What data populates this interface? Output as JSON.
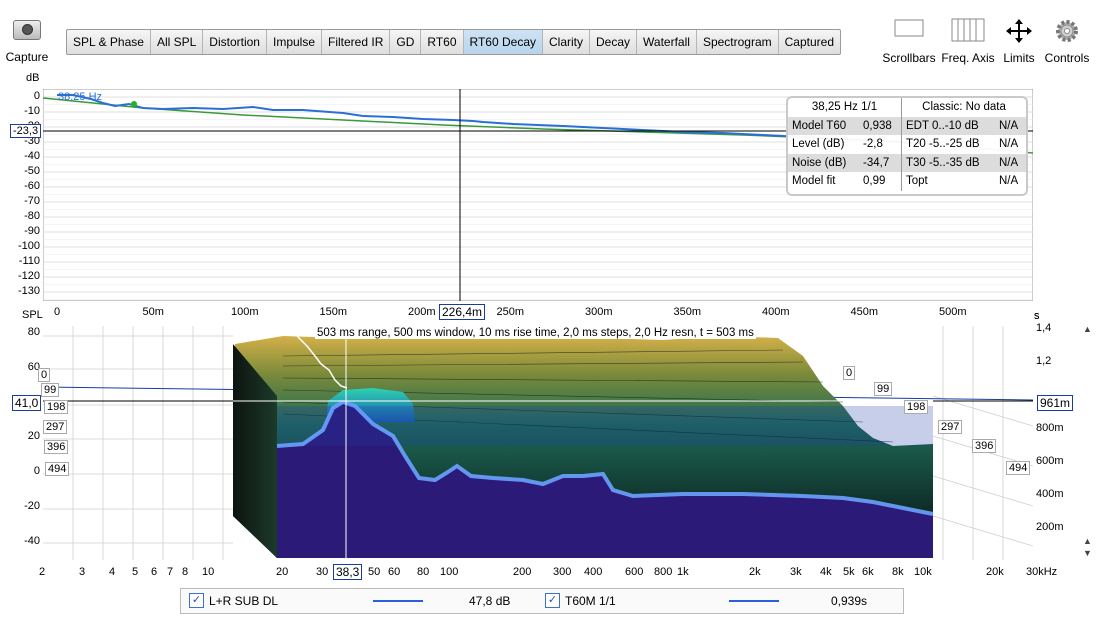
{
  "toolbar": {
    "capture_label": "Capture",
    "tabs": [
      "SPL & Phase",
      "All SPL",
      "Distortion",
      "Impulse",
      "Filtered IR",
      "GD",
      "RT60",
      "RT60 Decay",
      "Clarity",
      "Decay",
      "Waterfall",
      "Spectrogram",
      "Captured"
    ],
    "active_tab": "RT60 Decay",
    "right_controls": [
      "Scrollbars",
      "Freq. Axis",
      "Limits",
      "Controls"
    ]
  },
  "top_chart": {
    "y_unit": "dB",
    "y_ticks": [
      "0",
      "-10",
      "-20",
      "-30",
      "-40",
      "-50",
      "-60",
      "-70",
      "-80",
      "-90",
      "-100",
      "-110",
      "-120",
      "-130"
    ],
    "x_ticks": [
      "0",
      "50m",
      "100m",
      "150m",
      "200m",
      "250m",
      "300m",
      "350m",
      "400m",
      "450m",
      "500m"
    ],
    "x_unit": "s",
    "cursor_x_value": "226,4m",
    "cursor_y_value": "-23,3",
    "curve_label": "38,25 Hz",
    "info": {
      "header_left": "38,25 Hz 1/1",
      "header_right": "Classic: No data",
      "rows": [
        {
          "k1": "Model T60",
          "v1": "0,938",
          "k2": "EDT  0..-10 dB",
          "v2": "N/A"
        },
        {
          "k1": "Level (dB)",
          "v1": "-2,8",
          "k2": "T20 -5..-25 dB",
          "v2": "N/A"
        },
        {
          "k1": "Noise (dB)",
          "v1": "-34,7",
          "k2": "T30 -5..-35 dB",
          "v2": "N/A"
        },
        {
          "k1": "Model fit",
          "v1": "0,99",
          "k2": "Topt",
          "v2": "N/A"
        }
      ]
    }
  },
  "bottom_chart": {
    "y_unit": "SPL",
    "y_ticks": [
      "80",
      "60",
      "40",
      "20",
      "0",
      "-20",
      "-40"
    ],
    "cursor_y_value": "41,0",
    "cursor_x_value": "38,3",
    "cursor_time_value": "961m",
    "title_text": "503 ms range, 500 ms window, 10 ms rise time, 2,0 ms steps,  2,0 Hz resn, t = 503 ms",
    "x_ticks": [
      "2",
      "3",
      "4",
      "5",
      "6",
      "7",
      "8",
      "10",
      "20",
      "30",
      "50",
      "60",
      "80",
      "100",
      "200",
      "300",
      "400",
      "600",
      "800",
      "1k",
      "2k",
      "3k",
      "4k",
      "5k",
      "6k",
      "8k",
      "10k",
      "20k",
      "30kHz"
    ],
    "right_ticks": [
      "1,4",
      "1,2",
      "800m",
      "600m",
      "400m",
      "200m"
    ],
    "right_unit": "s",
    "time_labels_left": [
      "0",
      "99",
      "198",
      "297",
      "396",
      "494"
    ],
    "time_labels_right": [
      "0",
      "99",
      "198",
      "297",
      "396",
      "494"
    ]
  },
  "legend": {
    "items": [
      {
        "checked": true,
        "name": "L+R SUB DL",
        "value": "47,8 dB"
      },
      {
        "checked": true,
        "name": "T60M 1/1",
        "value": "0,939s"
      }
    ]
  },
  "colors": {
    "curve_blue": "#2a5fd6",
    "model_green": "#3a9a3a",
    "tab_active": "#c4dbef",
    "box_border": "#1a3d9c",
    "fill_purple": "#2c1a78"
  }
}
